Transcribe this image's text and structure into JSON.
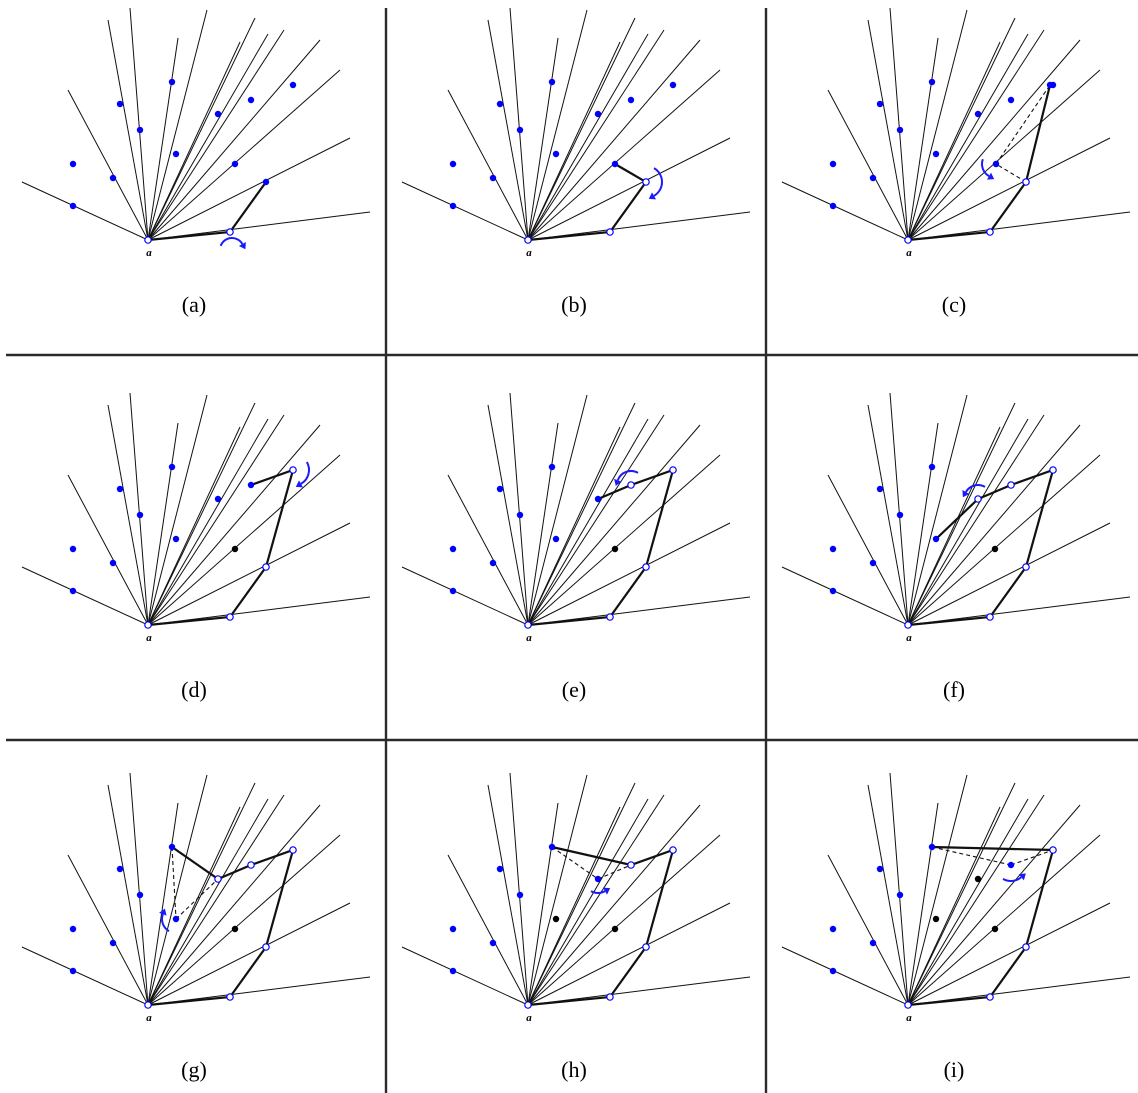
{
  "figure": {
    "origin_label": "a",
    "colors": {
      "active_point": "#0000ff",
      "processed_point": "#000000",
      "hull_vertex_fill": "#ffffff",
      "arrow": "#1a1aff"
    },
    "panels": [
      {
        "caption": "(a)"
      },
      {
        "caption": "(b)"
      },
      {
        "caption": "(c)"
      },
      {
        "caption": "(d)"
      },
      {
        "caption": "(e)"
      },
      {
        "caption": "(f)"
      },
      {
        "caption": "(g)"
      },
      {
        "caption": "(h)"
      },
      {
        "caption": "(i)"
      }
    ]
  }
}
